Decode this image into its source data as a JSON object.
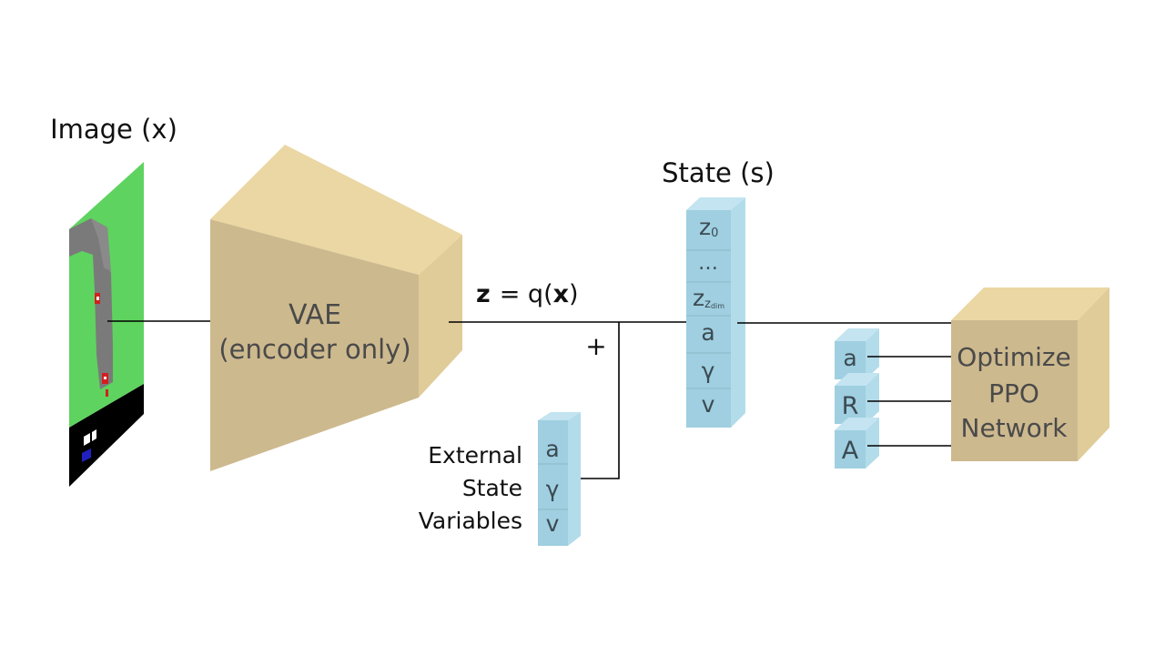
{
  "image_block": {
    "label": "Image (x)"
  },
  "vae": {
    "line1": "VAE",
    "line2": "(encoder only)"
  },
  "latent": {
    "z": "z",
    "eq": "= q(",
    "x": "x",
    "close": ")"
  },
  "plus": "+",
  "external": {
    "line1": "External",
    "line2": "State",
    "line3": "Variables",
    "cells": [
      "a",
      "γ",
      "v"
    ]
  },
  "state": {
    "label": "State (s)",
    "cells": [
      "z",
      "…",
      "z",
      "a",
      "γ",
      "v"
    ],
    "sub0": "0",
    "subdim": "z",
    "subdim2": "dim"
  },
  "ppo_inputs": [
    "a",
    "R",
    "A"
  ],
  "ppo": {
    "line1": "Optimize",
    "line2": "PPO",
    "line3": "Network"
  },
  "colors": {
    "tan_front": "#cdb98e",
    "tan_top": "#ead7a3",
    "tan_side": "#e0cc98",
    "blue_front": "#9fcfe0",
    "blue_top": "#c3e4f0",
    "blue_side": "#b3dcea",
    "grass": "#5fd35f",
    "road": "#7a7a7a"
  }
}
